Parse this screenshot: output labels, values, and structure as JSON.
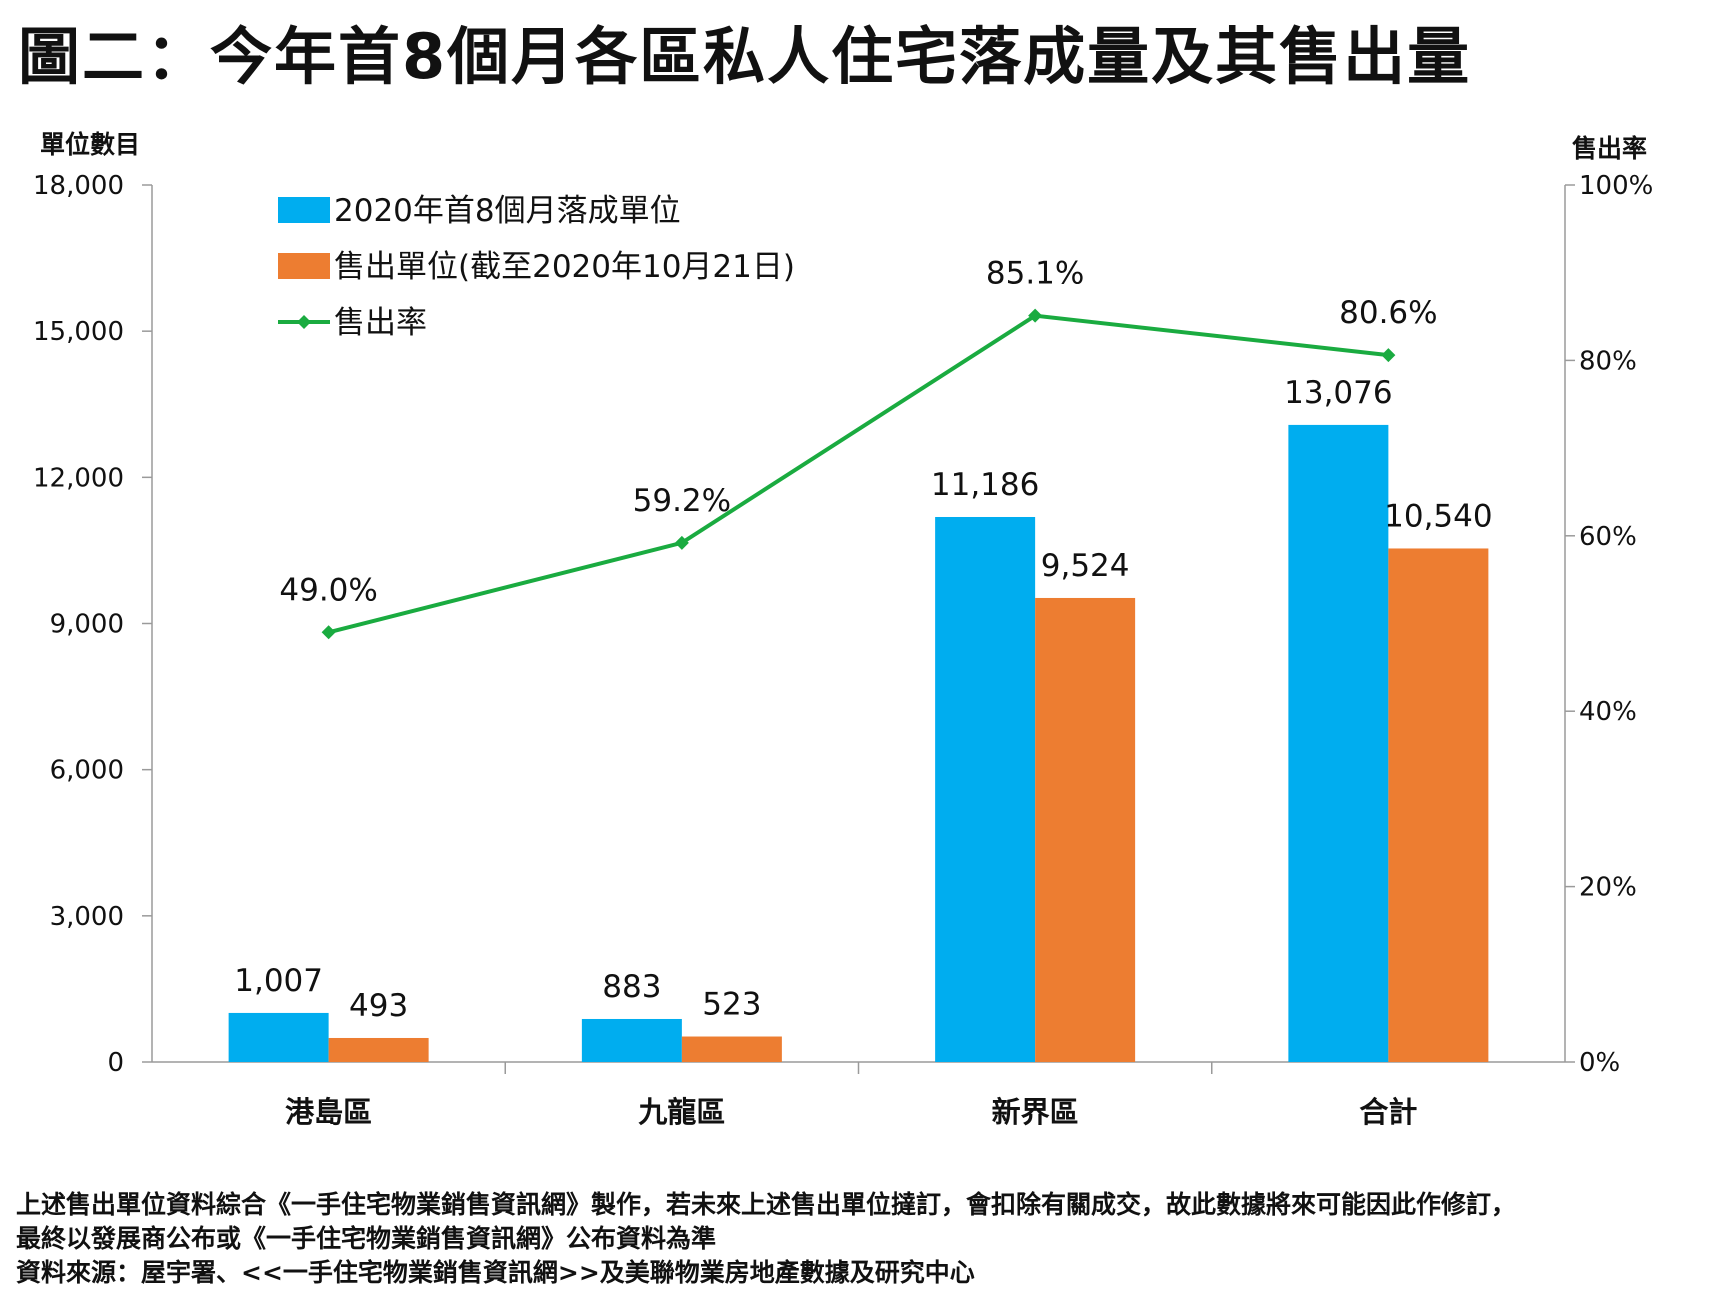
{
  "title": "圖二：今年首8個月各區私人住宅落成量及其售出量",
  "chart_data": {
    "type": "bar",
    "categories": [
      "港島區",
      "九龍區",
      "新界區",
      "合計"
    ],
    "series": [
      {
        "name": "2020年首8個月落成單位",
        "values": [
          1007,
          883,
          11186,
          13076
        ],
        "color": "#00ADEF",
        "labels": [
          "1,007",
          "883",
          "11,186",
          "13,076"
        ]
      },
      {
        "name": "售出單位(截至2020年10月21日)",
        "values": [
          493,
          523,
          9524,
          10540
        ],
        "color": "#ED7D31",
        "labels": [
          "493",
          "523",
          "9,524",
          "10,540"
        ]
      },
      {
        "name": "售出率",
        "type": "line",
        "axis": "right",
        "values": [
          49.0,
          59.2,
          85.1,
          80.6
        ],
        "color": "#1AAB40",
        "labels": [
          "49.0%",
          "59.2%",
          "85.1%",
          "80.6%"
        ]
      }
    ],
    "ylabel": "單位數目",
    "y2label": "售出率",
    "ylim": [
      0,
      18000
    ],
    "y2lim": [
      0,
      100
    ],
    "yticks": [
      "0",
      "3,000",
      "6,000",
      "9,000",
      "12,000",
      "15,000",
      "18,000"
    ],
    "y2ticks": [
      "0%",
      "20%",
      "40%",
      "60%",
      "80%",
      "100%"
    ],
    "legend_position": "top-left"
  },
  "notes": [
    "上述售出單位資料綜合《一手住宅物業銷售資訊網》製作，若未來上述售出單位撻訂，會扣除有關成交，故此數據將來可能因此作修訂，",
    "最終以發展商公布或《一手住宅物業銷售資訊網》公布資料為準",
    "資料來源：屋宇署、<<一手住宅物業銷售資訊網>>及美聯物業房地產數據及研究中心"
  ]
}
